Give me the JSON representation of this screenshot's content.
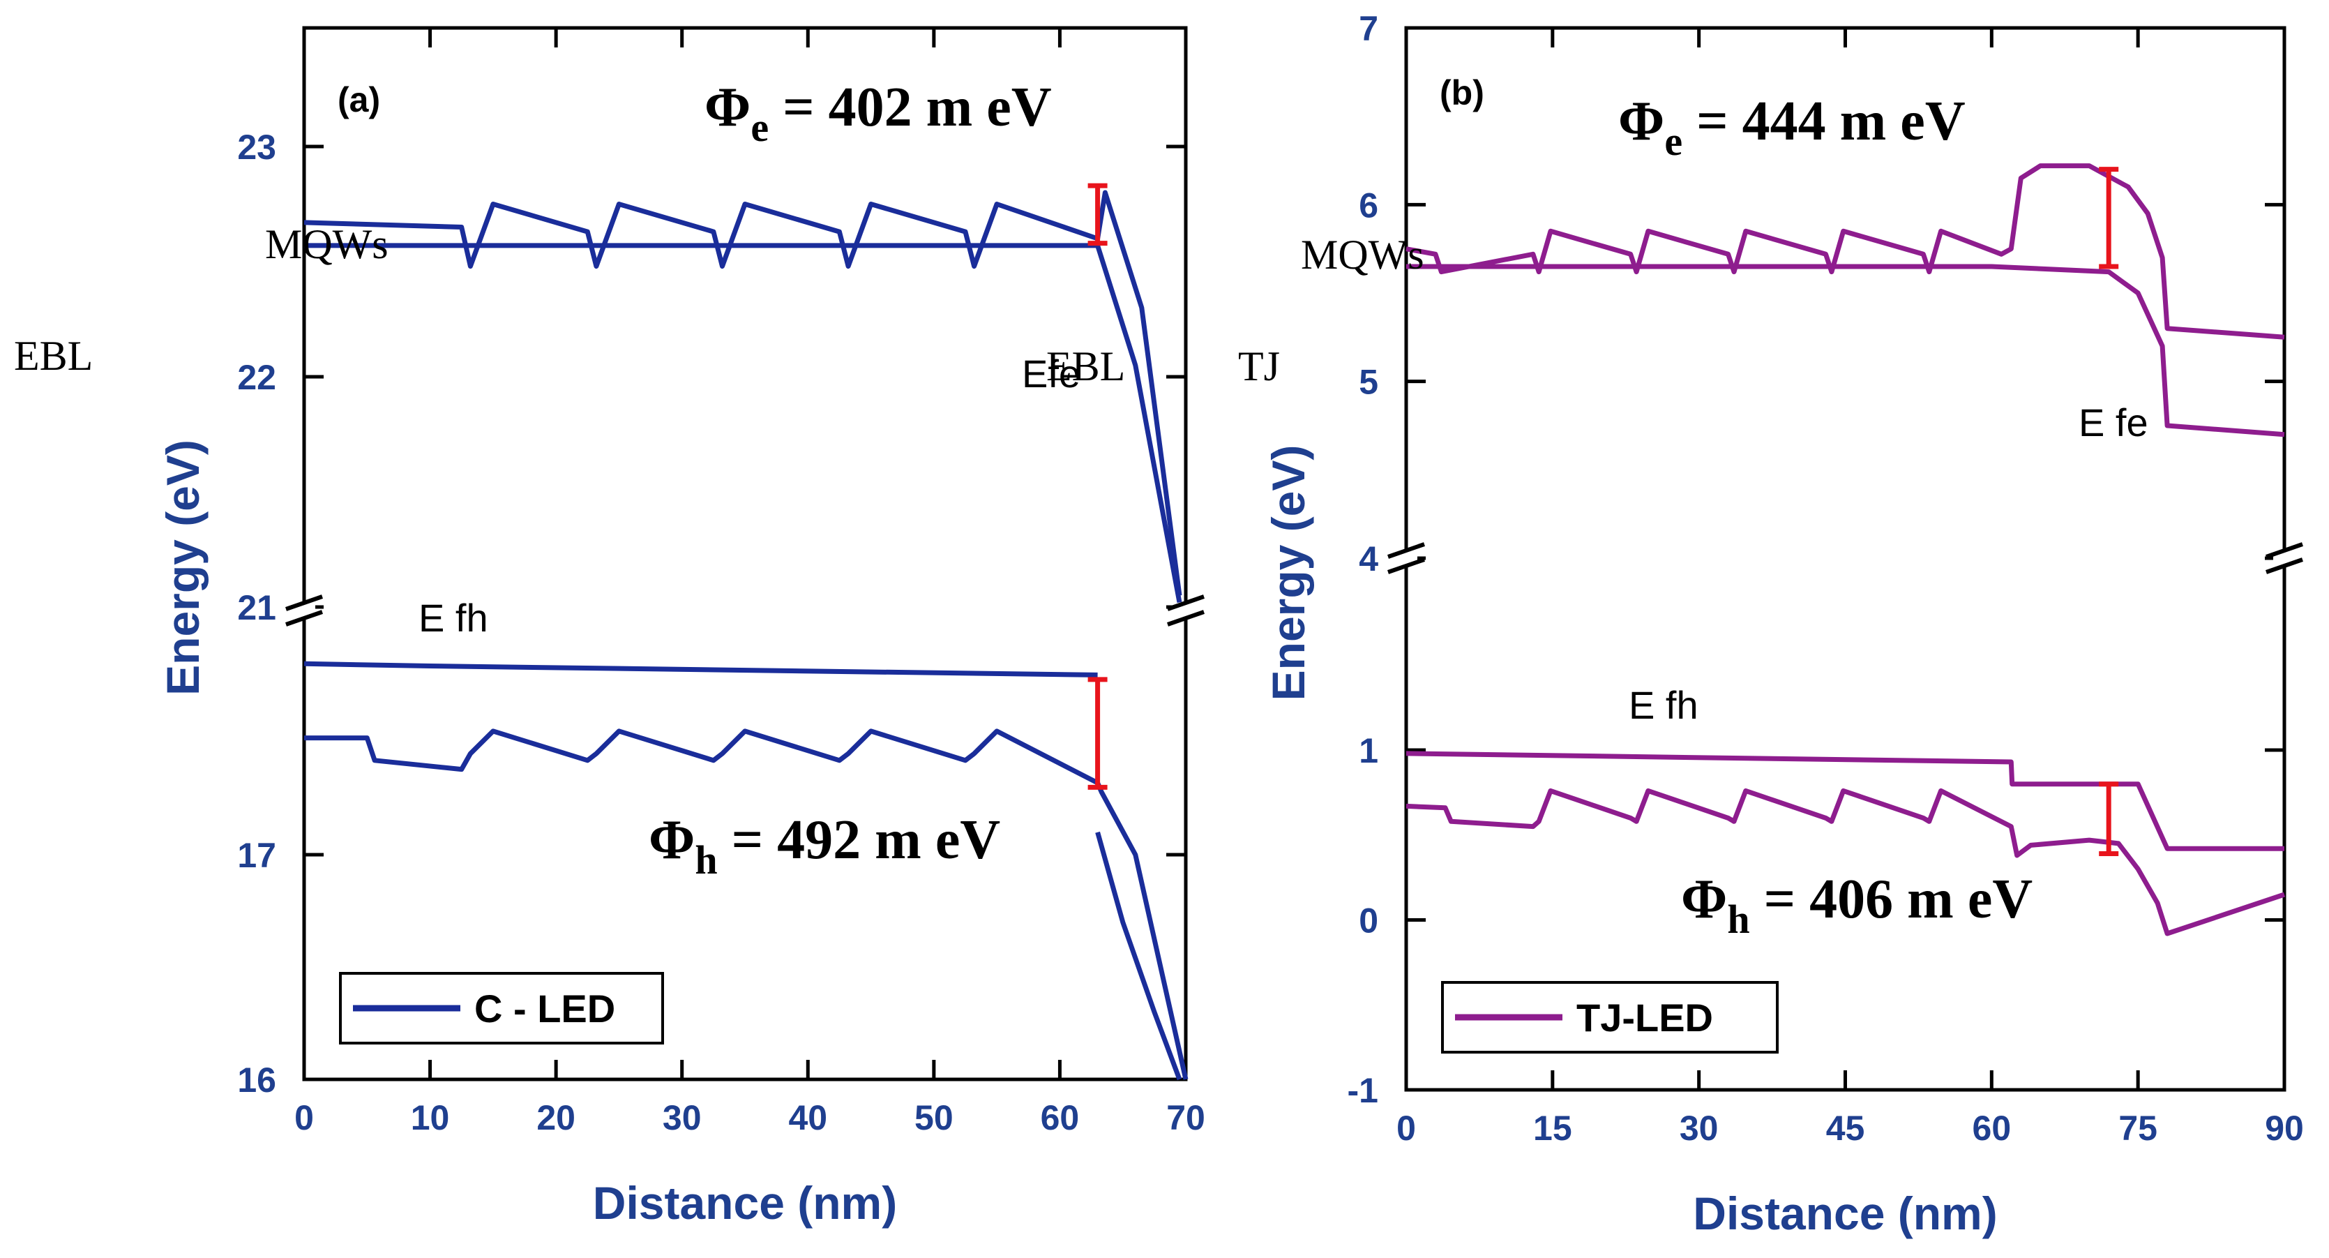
{
  "chart_data": [
    {
      "type": "line",
      "panel_label": "(a)",
      "xlabel": "Distance (nm)",
      "ylabel": "Energy (eV)",
      "x_ticks": [
        "0",
        "10",
        "20",
        "30",
        "40",
        "50",
        "60",
        "70"
      ],
      "x_range": [
        0,
        70
      ],
      "y_upper_ticks": [
        "21",
        "22",
        "23"
      ],
      "y_upper_range": [
        21,
        23.5
      ],
      "y_lower_ticks": [
        "16",
        "17"
      ],
      "y_lower_range": [
        16,
        18
      ],
      "axis_break": true,
      "legend": "C - LED",
      "series_color": "#1a2d9a",
      "annotations": {
        "phi_e_symbol": "Φ",
        "phi_e_sub": "e",
        "phi_e_value": "= 402 m eV",
        "phi_h_symbol": "Φ",
        "phi_h_sub": "h",
        "phi_h_value": "= 492 m eV",
        "mqws": "MQWs",
        "ebl_left": "EBL",
        "efe": "Efe",
        "ebl_right": "EBL",
        "tj": "TJ",
        "efh": "E fh"
      },
      "barrier_marks": [
        {
          "band": "conduction",
          "x": 63,
          "y_from": 22.58,
          "y_to": 22.83
        },
        {
          "band": "valence",
          "x": 63,
          "y_from": 17.3,
          "y_to": 17.78
        }
      ],
      "series": [
        {
          "name": "Ec",
          "x": [
            0,
            12.5,
            13.2,
            15,
            22.5,
            23.2,
            25,
            32.5,
            33.2,
            35,
            42.5,
            43.2,
            45,
            52.5,
            53.2,
            55,
            63,
            63.6,
            66.5,
            69.5
          ],
          "y": [
            22.67,
            22.65,
            22.48,
            22.75,
            22.63,
            22.48,
            22.75,
            22.63,
            22.48,
            22.75,
            22.63,
            22.48,
            22.75,
            22.63,
            22.48,
            22.75,
            22.6,
            22.8,
            22.3,
            21.05
          ]
        },
        {
          "name": "Efe",
          "x": [
            0,
            63,
            66,
            69.5
          ],
          "y": [
            22.57,
            22.57,
            22.05,
            21.02
          ]
        },
        {
          "name": "Efh",
          "x": [
            0,
            10,
            63
          ],
          "y": [
            17.85,
            17.84,
            17.8
          ]
        },
        {
          "name": "Ev",
          "x": [
            0,
            5,
            5.6,
            12.5,
            13.2,
            15,
            22.5,
            23.2,
            25,
            32.5,
            33.2,
            35,
            42.5,
            43.2,
            45,
            52.5,
            53.2,
            55,
            63,
            63.3,
            66,
            70
          ],
          "y": [
            17.52,
            17.52,
            17.42,
            17.38,
            17.45,
            17.55,
            17.42,
            17.45,
            17.55,
            17.42,
            17.45,
            17.55,
            17.42,
            17.45,
            17.55,
            17.42,
            17.45,
            17.55,
            17.32,
            17.28,
            17.0,
            16.0
          ]
        },
        {
          "name": "Ev-edge",
          "x": [
            63,
            65,
            67.5,
            69.5
          ],
          "y": [
            17.1,
            16.7,
            16.3,
            16.0
          ]
        }
      ]
    },
    {
      "type": "line",
      "panel_label": "(b)",
      "xlabel": "Distance (nm)",
      "ylabel": "Energy (eV)",
      "x_ticks": [
        "0",
        "15",
        "30",
        "45",
        "60",
        "75",
        "90"
      ],
      "x_range": [
        0,
        90
      ],
      "y_upper_ticks": [
        "4",
        "5",
        "6",
        "7"
      ],
      "y_upper_range": [
        4,
        7
      ],
      "y_lower_ticks": [
        "-1",
        "0",
        "1"
      ],
      "y_lower_range": [
        -1,
        2
      ],
      "axis_break": true,
      "legend": "TJ-LED",
      "series_color": "#8e1d8e",
      "annotations": {
        "phi_e_symbol": "Φ",
        "phi_e_sub": "e",
        "phi_e_value": "= 444 m eV",
        "phi_h_symbol": "Φ",
        "phi_h_sub": "h",
        "phi_h_value": "= 406 m eV",
        "mqws": "MQWs",
        "efe": "E fe",
        "efh": "E fh"
      },
      "barrier_marks": [
        {
          "band": "conduction",
          "x": 72,
          "y_from": 5.65,
          "y_to": 6.2
        },
        {
          "band": "valence",
          "x": 72,
          "y_from": 0.39,
          "y_to": 0.8
        }
      ],
      "series": [
        {
          "name": "Ec",
          "x": [
            0,
            3,
            3.6,
            13,
            13.6,
            14.8,
            23,
            23.6,
            24.8,
            33,
            33.6,
            34.8,
            43,
            43.6,
            44.8,
            53,
            53.6,
            54.8,
            61,
            62,
            63,
            65,
            70,
            74,
            76,
            77.5,
            78,
            90
          ],
          "y": [
            5.75,
            5.72,
            5.62,
            5.72,
            5.62,
            5.85,
            5.72,
            5.62,
            5.85,
            5.72,
            5.62,
            5.85,
            5.72,
            5.62,
            5.85,
            5.72,
            5.62,
            5.85,
            5.72,
            5.75,
            6.15,
            6.22,
            6.22,
            6.1,
            5.95,
            5.7,
            5.3,
            5.25
          ]
        },
        {
          "name": "Efe",
          "x": [
            0,
            60,
            72,
            75,
            77.5,
            78,
            90
          ],
          "y": [
            5.65,
            5.65,
            5.62,
            5.5,
            5.2,
            4.75,
            4.7
          ]
        },
        {
          "name": "Efh",
          "x": [
            0,
            62,
            62.1,
            75,
            78,
            90
          ],
          "y": [
            0.98,
            0.93,
            0.8,
            0.8,
            0.42,
            0.42
          ]
        },
        {
          "name": "Ev",
          "x": [
            0,
            4,
            4.6,
            13,
            13.6,
            14.8,
            23,
            23.6,
            24.8,
            33,
            33.6,
            34.8,
            43,
            43.6,
            44.8,
            53,
            53.6,
            54.8,
            62,
            62.6,
            64,
            70,
            73,
            75,
            77,
            78,
            90
          ],
          "y": [
            0.67,
            0.66,
            0.58,
            0.55,
            0.58,
            0.76,
            0.6,
            0.58,
            0.76,
            0.6,
            0.58,
            0.76,
            0.6,
            0.58,
            0.76,
            0.6,
            0.58,
            0.76,
            0.55,
            0.38,
            0.44,
            0.47,
            0.45,
            0.3,
            0.1,
            -0.08,
            0.15
          ]
        }
      ]
    }
  ]
}
